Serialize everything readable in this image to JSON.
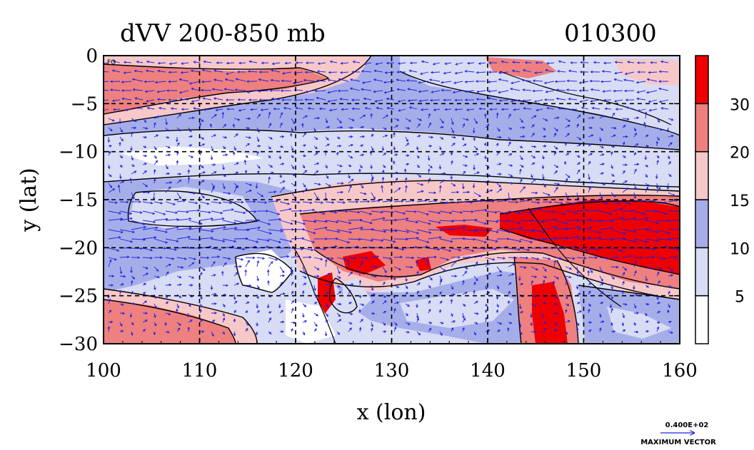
{
  "chart_data": {
    "type": "heatmap",
    "title": "dVV 200-850 mb",
    "date_label": "010300",
    "xlabel": "x (lon)",
    "ylabel": "y (lat)",
    "xlim": [
      100,
      160
    ],
    "ylim": [
      -30,
      0
    ],
    "x_ticks": [
      "100",
      "110",
      "120",
      "130",
      "140",
      "150",
      "160"
    ],
    "y_ticks": [
      "0",
      "−5",
      "−10",
      "−15",
      "−20",
      "−25",
      "−30"
    ],
    "grid": true,
    "colorbar": {
      "levels": [
        0,
        5,
        10,
        15,
        20,
        30,
        40
      ],
      "labels": [
        "5",
        "10",
        "15",
        "20",
        "30"
      ],
      "colors": [
        "#ffffff",
        "#d8dcf4",
        "#a6aeea",
        "#f6c8c8",
        "#ee8080",
        "#ee0000"
      ]
    },
    "corner_label": "FO",
    "vector_key": {
      "magnitude": "0.400E+02",
      "caption": "MAXIMUM VECTOR"
    },
    "colors": {
      "vector": "#2020e0",
      "contour": "#000000"
    }
  }
}
